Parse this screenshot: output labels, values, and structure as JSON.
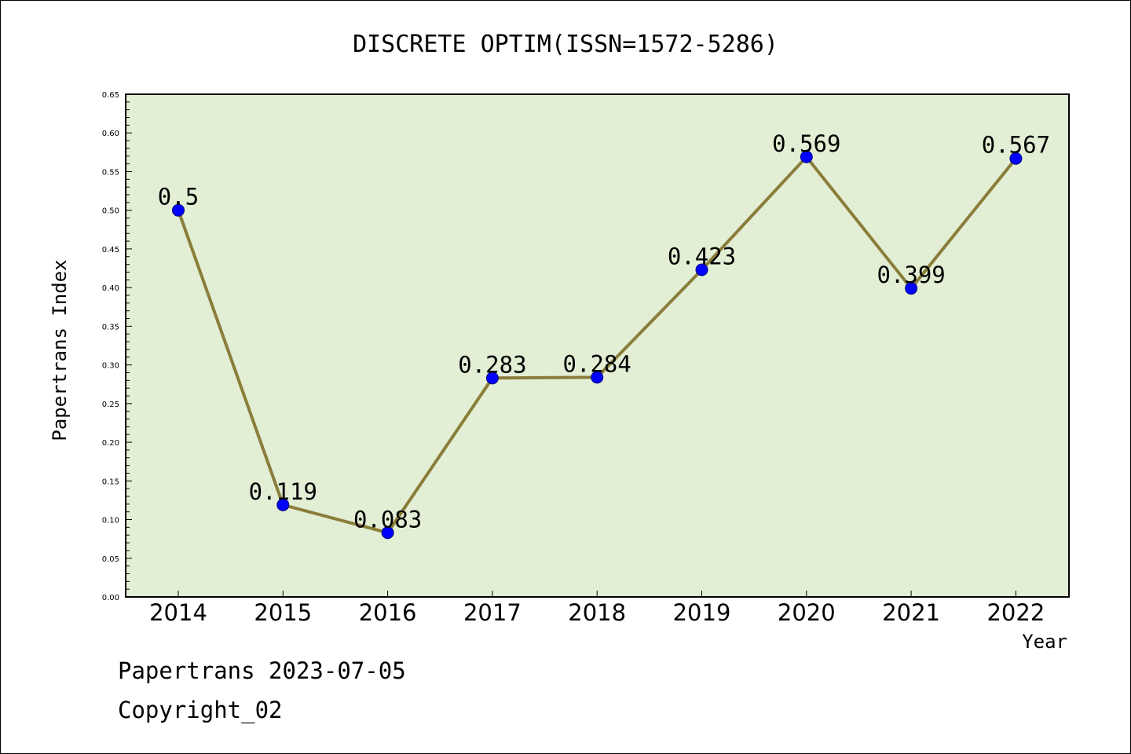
{
  "chart_data": {
    "type": "line",
    "title": "DISCRETE OPTIM(ISSN=1572-5286)",
    "xlabel": "Year",
    "ylabel": "Papertrans Index",
    "categories": [
      "2014",
      "2015",
      "2016",
      "2017",
      "2018",
      "2019",
      "2020",
      "2021",
      "2022"
    ],
    "values": [
      0.5,
      0.119,
      0.083,
      0.283,
      0.284,
      0.423,
      0.569,
      0.399,
      0.567
    ],
    "data_labels": [
      "0.5",
      "0.119",
      "0.083",
      "0.283",
      "0.284",
      "0.423",
      "0.569",
      "0.399",
      "0.567"
    ],
    "ylim": [
      0,
      0.65
    ],
    "yticks": [
      "0.00",
      "0.05",
      "0.10",
      "0.15",
      "0.20",
      "0.25",
      "0.30",
      "0.35",
      "0.40",
      "0.45",
      "0.50",
      "0.55",
      "0.60",
      "0.65"
    ],
    "grid": false,
    "colors": {
      "plot_background": "#e2efd5",
      "line": "#8b7d3a",
      "marker": "#0000ff"
    }
  },
  "footer": {
    "date_line": "Papertrans 2023-07-05",
    "copyright": "Copyright_02"
  }
}
